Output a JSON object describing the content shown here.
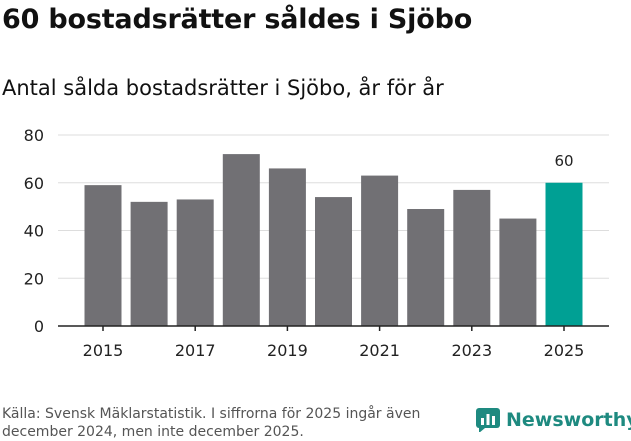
{
  "title": "60 bostadsrätter såldes i Sjöbo",
  "subtitle": "Antal sålda bostadsrätter i Sjöbo, år för år",
  "source": "Källa: Svensk Mäklarstatistik. I siffrorna för 2025 ingår även december 2024, men inte december 2025.",
  "brand": "Newsworthy",
  "colors": {
    "bar": "#717074",
    "highlight": "#00a094",
    "grid": "#dddddd",
    "axis": "#222222",
    "brand": "#1e8a80"
  },
  "chart_data": {
    "type": "bar",
    "title": "Antal sålda bostadsrätter i Sjöbo, år för år",
    "xlabel": "",
    "ylabel": "",
    "categories": [
      "2015",
      "2016",
      "2017",
      "2018",
      "2019",
      "2020",
      "2021",
      "2022",
      "2023",
      "2024",
      "2025"
    ],
    "values": [
      59,
      52,
      53,
      72,
      66,
      54,
      63,
      49,
      57,
      45,
      60
    ],
    "x_tick_labels": [
      "2015",
      "",
      "2017",
      "",
      "2019",
      "",
      "2021",
      "",
      "2023",
      "",
      "2025"
    ],
    "ylim": [
      0,
      80
    ],
    "yticks": [
      0,
      20,
      40,
      60,
      80
    ],
    "highlight_index": 10,
    "data_labels": [
      {
        "index": 10,
        "text": "60"
      }
    ],
    "grid": true
  }
}
